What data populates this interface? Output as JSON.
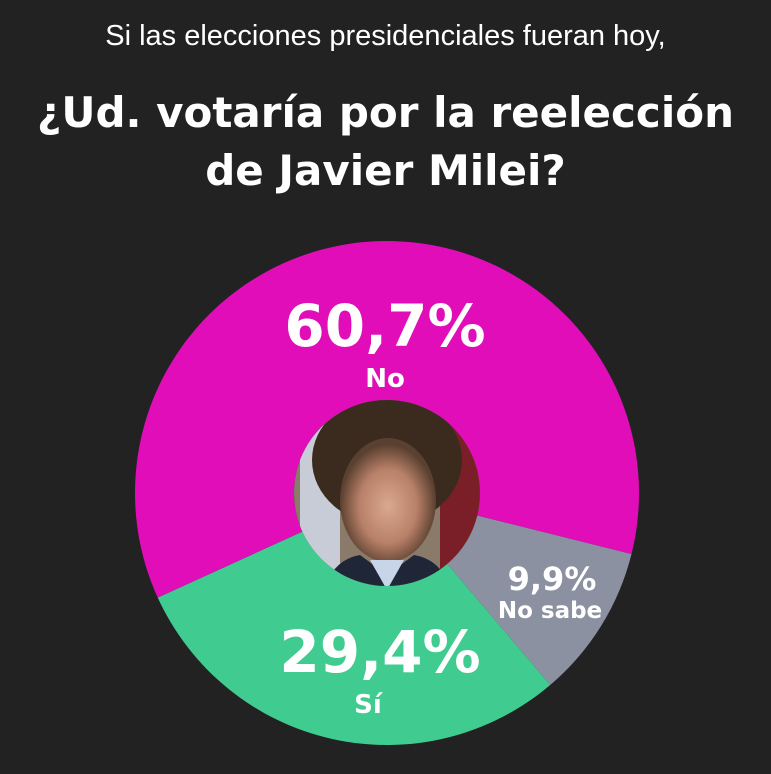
{
  "chart_data": {
    "type": "pie",
    "title_line1": "Si las elecciones presidenciales fueran hoy,",
    "title_line2": "¿Ud. votaría por la reelección",
    "title_line3": "de Javier Milei?",
    "slices": [
      {
        "label": "No sabe",
        "value": 9.9,
        "value_label": "9,9%",
        "color": "#8b91a1"
      },
      {
        "label": "Sí",
        "value": 29.4,
        "value_label": "29,4%",
        "color": "#40cc90"
      },
      {
        "label": "No",
        "value": 60.7,
        "value_label": "60,7%",
        "color": "#e00db9"
      }
    ],
    "center_image": "portrait of Javier Milei"
  }
}
